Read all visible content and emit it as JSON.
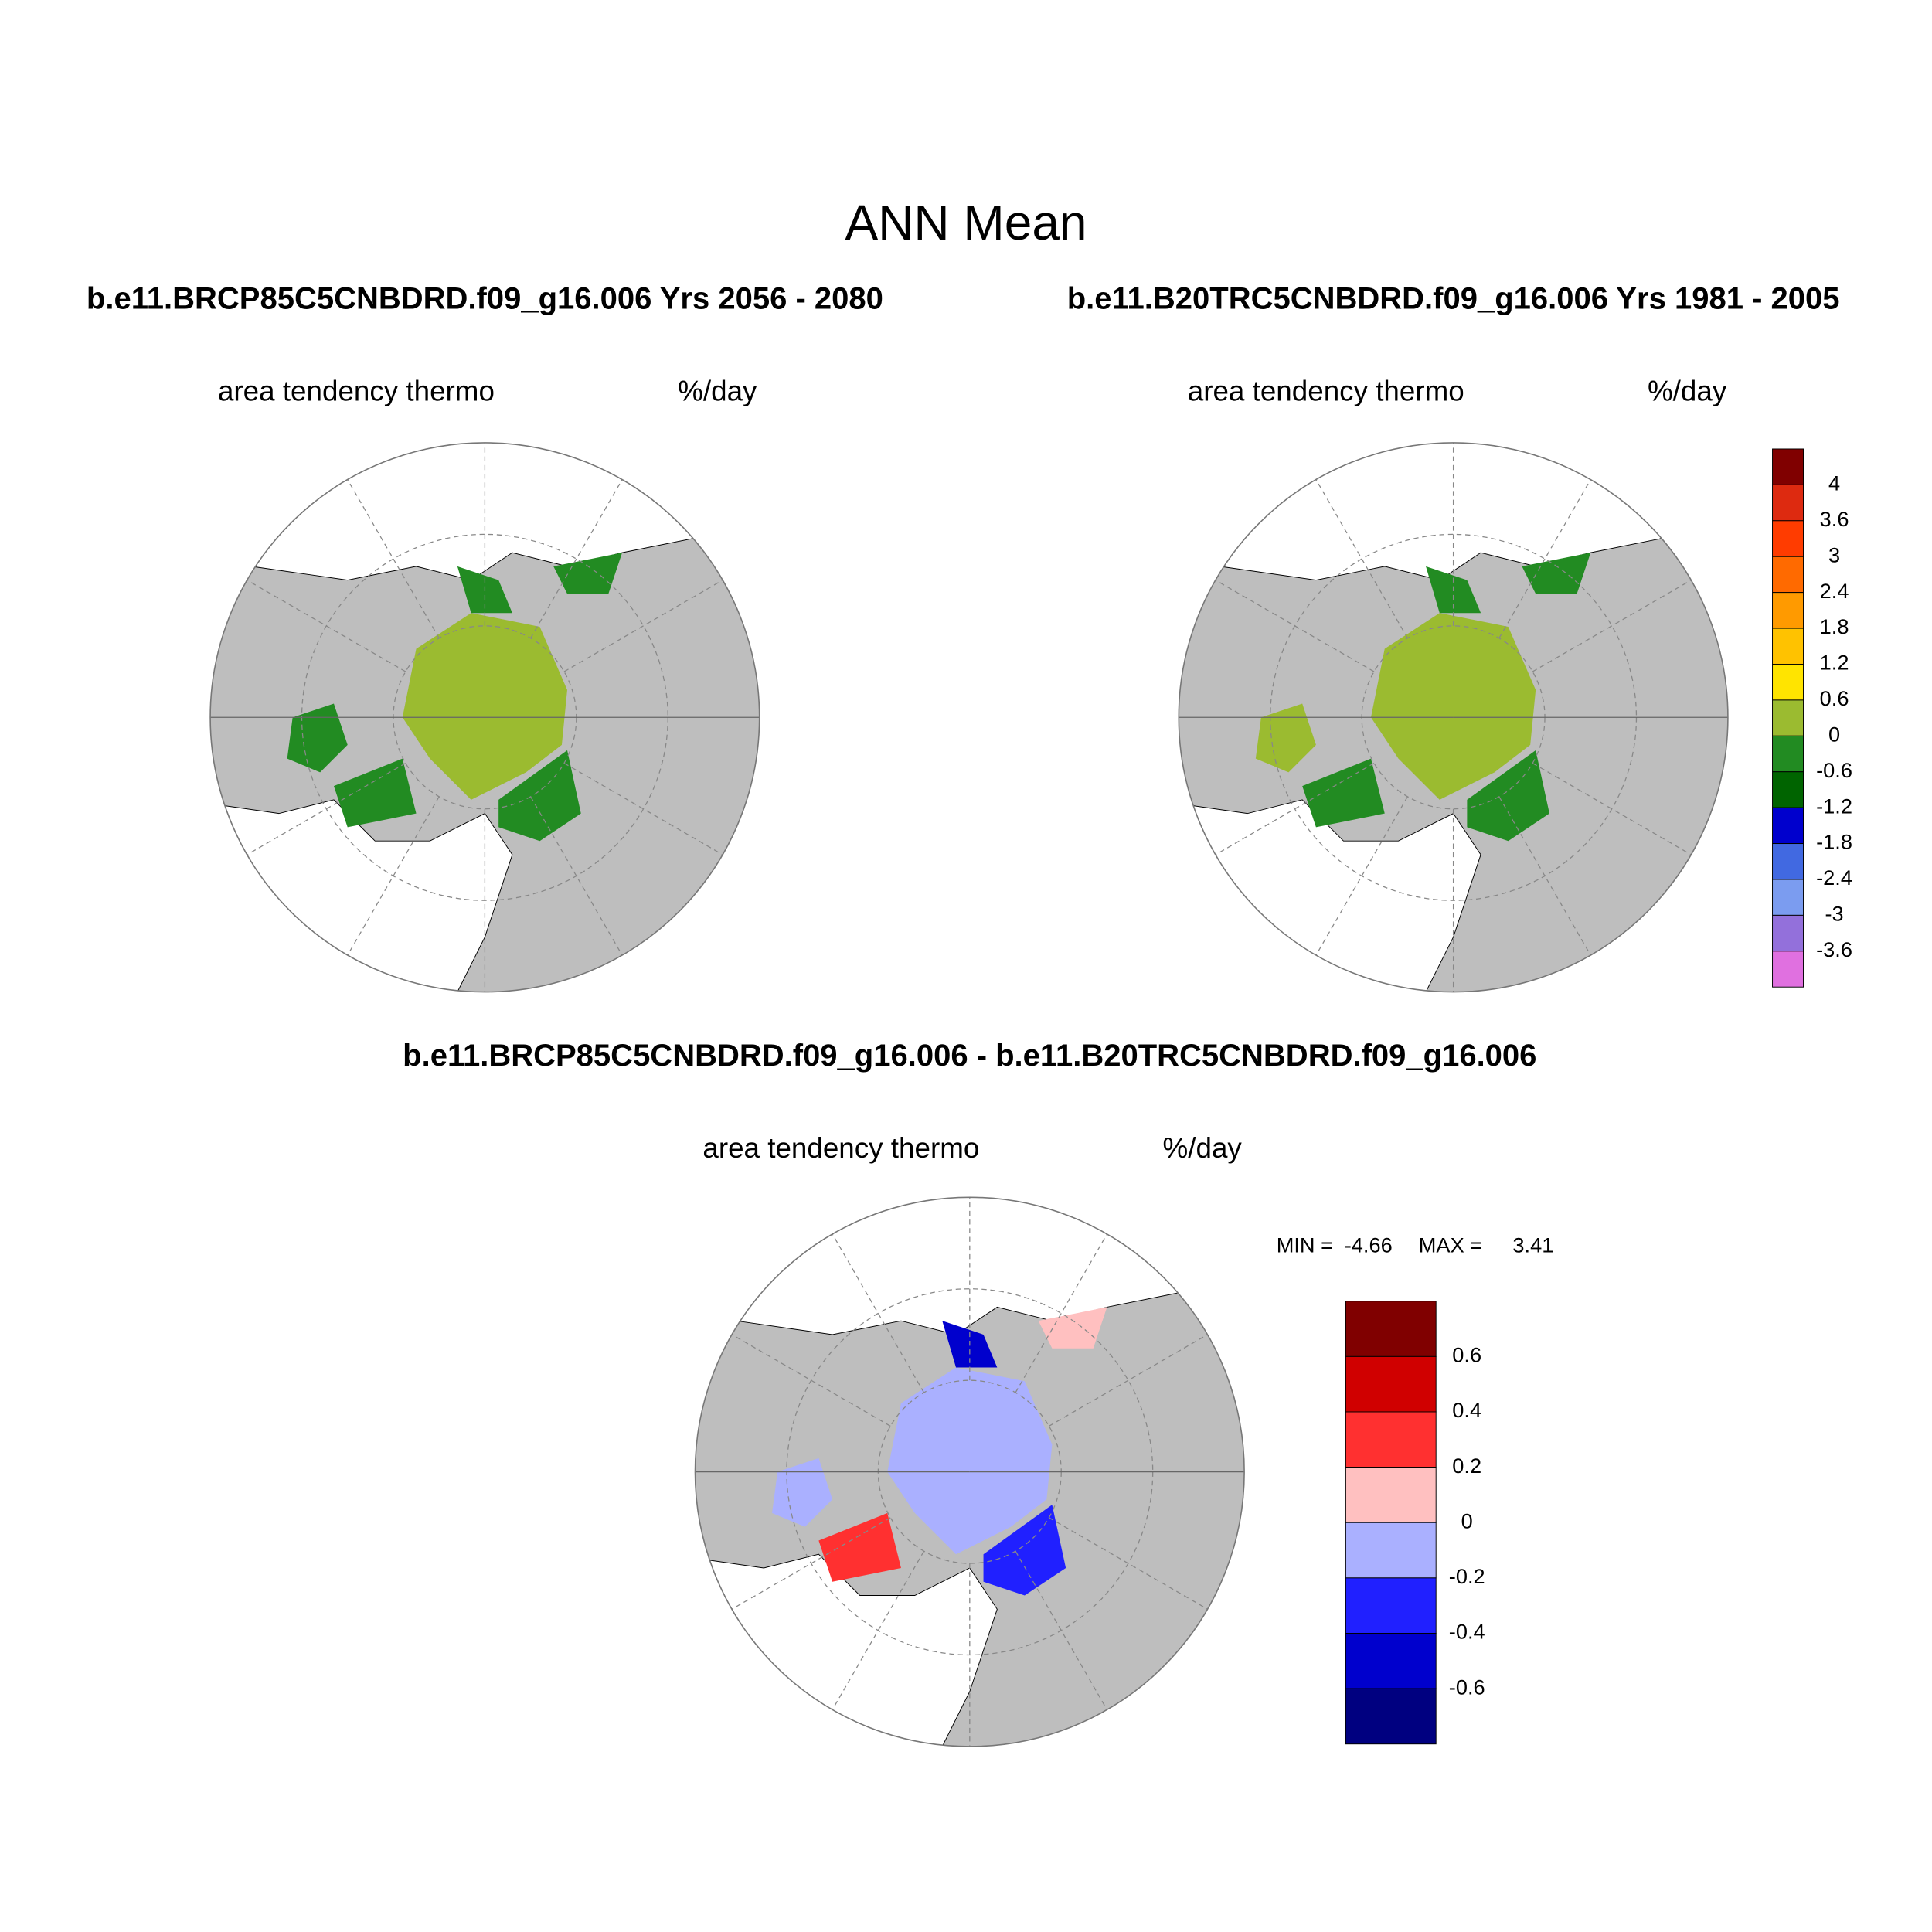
{
  "title": "ANN Mean",
  "panels": [
    {
      "header": "b.e11.BRCP85C5CNBDRD.f09_g16.006  Yrs 2056 - 2080",
      "left_label": "area tendency thermo",
      "right_label": "%/day"
    },
    {
      "header": "b.e11.B20TRC5CNBDRD.f09_g16.006  Yrs 1981 - 2005",
      "left_label": "area tendency thermo",
      "right_label": "%/day"
    },
    {
      "header": "b.e11.BRCP85C5CNBDRD.f09_g16.006 - b.e11.B20TRC5CNBDRD.f09_g16.006",
      "left_label": "area tendency thermo",
      "right_label": "%/day"
    }
  ],
  "stats": {
    "min_label": "MIN =",
    "min": -4.66,
    "max_label": "MAX =",
    "max": 3.41
  },
  "colorbars": [
    {
      "colors": [
        "#800000",
        "#dd2a10",
        "#ff3c00",
        "#ff6a00",
        "#ff9a00",
        "#ffc200",
        "#ffe400",
        "#9bbb30",
        "#228b22",
        "#006400",
        "#0000cd",
        "#4169e1",
        "#7b9cf0",
        "#9370db",
        "#e070e0"
      ],
      "labels": [
        4,
        3.6,
        3,
        2.4,
        1.8,
        1.2,
        0.6,
        0,
        -0.6,
        -1.2,
        -1.8,
        -2.4,
        -3,
        -3.6
      ]
    },
    {
      "colors": [
        "#800000",
        "#d00000",
        "#ff3030",
        "#ffc0c0",
        "#aab0ff",
        "#2020ff",
        "#0000cd",
        "#000080"
      ],
      "labels": [
        0.6,
        0.4,
        0.2,
        0,
        -0.2,
        -0.4,
        -0.6
      ]
    }
  ]
}
